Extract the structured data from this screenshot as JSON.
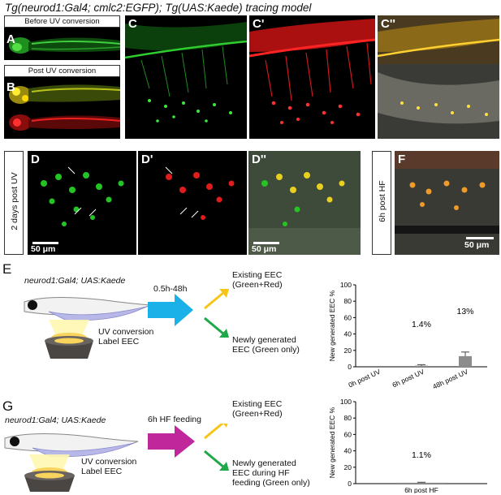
{
  "title": {
    "part1": "Tg(neurod1:Gal4; cmlc2:EGFP)",
    "sep": "; ",
    "part2": "Tg(UAS:Kaede)",
    "part3": " tracing model"
  },
  "labels": {
    "before_uv": "Before UV conversion",
    "post_uv": "Post UV conversion",
    "days_post_uv": "2 days post UV",
    "hf_post": "6h post HF",
    "scale": "50 μm"
  },
  "panel_letters": {
    "A": "A",
    "B": "B",
    "C": "C",
    "C1": "C'",
    "C2": "C''",
    "D": "D",
    "D1": "D'",
    "D2": "D''",
    "F": "F"
  },
  "section_E": {
    "letter": "E",
    "model": "neurod1:Gal4; UAS:Kaede",
    "uv_label_1": "UV conversion",
    "uv_label_2": "Label EEC",
    "time": "0.5h-48h",
    "existing_1": "Existing EEC",
    "existing_2": "(Green+Red)",
    "new_1": "Newly generated",
    "new_2": "EEC (Green only)"
  },
  "section_G": {
    "letter": "G",
    "model": "neurod1:Gal4; UAS:Kaede",
    "uv_label_1": "UV conversion",
    "uv_label_2": "Label EEC",
    "time": "6h HF feeding",
    "existing_1": "Existing EEC",
    "existing_2": "(Green+Red)",
    "new_1": "Newly generated",
    "new_2": "EEC during HF",
    "new_3": "feeding (Green only)"
  },
  "colors": {
    "arrow_E": "#1ab0e8",
    "arrow_G": "#c0279a",
    "arrow_yellow": "#f5c518",
    "arrow_green": "#1fa84a",
    "bar": "#8c8c8c"
  },
  "chart_data": [
    {
      "type": "bar",
      "categories": [
        "0h post UV",
        "6h post UV",
        "48h post UV"
      ],
      "values": [
        0,
        1.4,
        13
      ],
      "errors": [
        0,
        1.2,
        5
      ],
      "data_labels": [
        "",
        "1.4%",
        "13%"
      ],
      "ylabel": "New generated EEC %",
      "ylim": [
        0,
        100
      ],
      "yticks": [
        0,
        20,
        40,
        60,
        80,
        100
      ]
    },
    {
      "type": "bar",
      "categories": [
        "6h post HF"
      ],
      "values": [
        1.1
      ],
      "errors": [
        0.6
      ],
      "data_labels": [
        "1.1%"
      ],
      "ylabel": "New generated EEC %",
      "ylim": [
        0,
        100
      ],
      "yticks": [
        0,
        20,
        40,
        60,
        80,
        100
      ]
    }
  ]
}
